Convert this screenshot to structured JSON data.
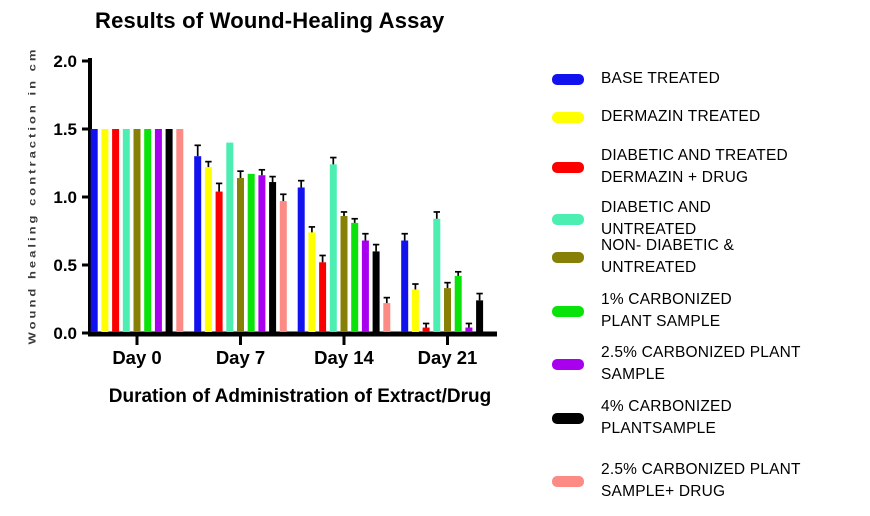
{
  "title": "Results of Wound-Healing Assay",
  "chart_data": {
    "type": "bar",
    "title": "Results of Wound-Healing Assay",
    "xlabel": "Duration of Administration of Extract/Drug",
    "ylabel": "Wound healing contraction in cm",
    "categories": [
      "Day 0",
      "Day 7",
      "Day 14",
      "Day 21"
    ],
    "ylim": [
      0.0,
      2.0
    ],
    "yticks": [
      0.0,
      0.5,
      1.0,
      1.5,
      2.0
    ],
    "grid": false,
    "legend_position": "right",
    "error_bars": "upper",
    "series": [
      {
        "name": "BASE TREATED",
        "legend_lines": [
          "BASE TREATED"
        ],
        "color": "#1212ee",
        "values": [
          1.5,
          1.3,
          1.07,
          0.68
        ],
        "errors": [
          0,
          0.08,
          0.05,
          0.05
        ]
      },
      {
        "name": "DERMAZIN TREATED",
        "legend_lines": [
          "DERMAZIN TREATED"
        ],
        "color": "#ffff00",
        "values": [
          1.5,
          1.22,
          0.74,
          0.32
        ],
        "errors": [
          0,
          0.04,
          0.04,
          0.04
        ]
      },
      {
        "name": "DIABETIC AND TREATED DERMAZIN + DRUG",
        "legend_lines": [
          "DIABETIC AND TREATED",
          "DERMAZIN + DRUG"
        ],
        "color": "#fc0000",
        "values": [
          1.5,
          1.04,
          0.52,
          0.04
        ],
        "errors": [
          0,
          0.06,
          0.05,
          0.03
        ]
      },
      {
        "name": "DIABETIC AND UNTREATED",
        "legend_lines": [
          "DIABETIC AND",
          "UNTREATED"
        ],
        "color": "#4deeb2",
        "values": [
          1.5,
          1.4,
          1.24,
          0.84
        ],
        "errors": [
          0,
          0,
          0.05,
          0.05
        ]
      },
      {
        "name": "NON- DIABETIC & UNTREATED",
        "legend_lines": [
          "NON- DIABETIC &",
          "UNTREATED"
        ],
        "color": "#868006",
        "values": [
          1.5,
          1.14,
          0.86,
          0.33
        ],
        "errors": [
          0,
          0.05,
          0.03,
          0.04
        ]
      },
      {
        "name": "1% CARBONIZED PLANT SAMPLE",
        "legend_lines": [
          "1% CARBONIZED",
          "PLANT SAMPLE"
        ],
        "color": "#0ae30a",
        "values": [
          1.5,
          1.17,
          0.81,
          0.42
        ],
        "errors": [
          0,
          0,
          0.03,
          0.03
        ]
      },
      {
        "name": "2.5% CARBONIZED PLANT SAMPLE",
        "legend_lines": [
          "2.5% CARBONIZED PLANT",
          "SAMPLE"
        ],
        "color": "#a800ee",
        "values": [
          1.5,
          1.16,
          0.68,
          0.04
        ],
        "errors": [
          0,
          0.04,
          0.05,
          0.03
        ]
      },
      {
        "name": "4% CARBONIZED PLANTSAMPLE",
        "legend_lines": [
          "4% CARBONIZED",
          "PLANTSAMPLE"
        ],
        "color": "#000000",
        "values": [
          1.5,
          1.11,
          0.6,
          0.24
        ],
        "errors": [
          0,
          0.04,
          0.05,
          0.05
        ]
      },
      {
        "name": "2.5% CARBONIZED PLANT SAMPLE+ DRUG",
        "legend_lines": [
          "2.5% CARBONIZED PLANT",
          "SAMPLE+ DRUG"
        ],
        "color": "#fc8a85",
        "values": [
          1.5,
          0.97,
          0.22,
          0
        ],
        "errors": [
          0,
          0.05,
          0.04,
          0
        ]
      }
    ]
  }
}
